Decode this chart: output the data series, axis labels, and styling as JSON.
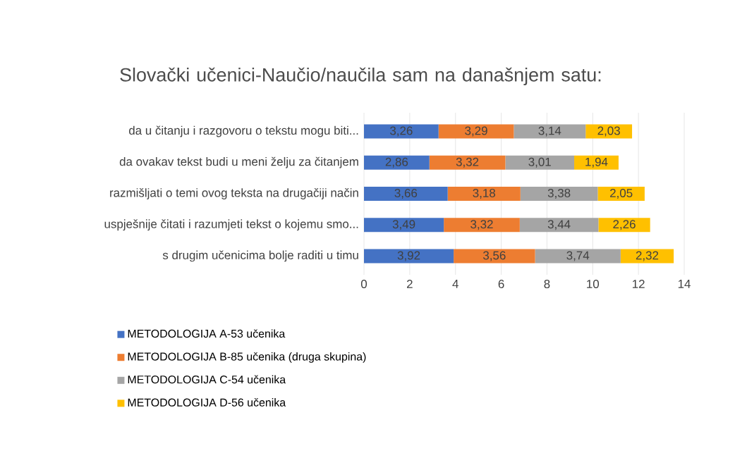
{
  "chart_data": {
    "type": "bar",
    "orientation": "horizontal",
    "stacked": true,
    "title": "Slovački učenici-Naučio/naučila sam na današnjem satu:",
    "categories": [
      "da u čitanju i razgovoru o tekstu mogu biti...",
      "da ovakav tekst budi u meni želju za čitanjem",
      "razmišljati o temi ovog teksta na drugačiji način",
      "uspješnije čitati i razumjeti tekst o kojemu smo...",
      "s drugim učenicima bolje raditi u timu"
    ],
    "series": [
      {
        "name": "METODOLOGIJA A-53 učenika",
        "color": "#4472c4",
        "values": [
          3.26,
          2.86,
          3.66,
          3.49,
          3.92
        ],
        "value_labels": [
          "3,26",
          "2,86",
          "3,66",
          "3,49",
          "3,92"
        ]
      },
      {
        "name": "METODOLOGIJA B-85 učenika (druga skupina)",
        "color": "#ed7d31",
        "values": [
          3.29,
          3.32,
          3.18,
          3.32,
          3.56
        ],
        "value_labels": [
          "3,29",
          "3,32",
          "3,18",
          "3,32",
          "3,56"
        ]
      },
      {
        "name": "METODOLOGIJA C-54 učenika",
        "color": "#a5a5a5",
        "values": [
          3.14,
          3.01,
          3.38,
          3.44,
          3.74
        ],
        "value_labels": [
          "3,14",
          "3,01",
          "3,38",
          "3,44",
          "3,74"
        ]
      },
      {
        "name": "METODOLOGIJA D-56 učenika",
        "color": "#ffc000",
        "values": [
          2.03,
          1.94,
          2.05,
          2.26,
          2.32
        ],
        "value_labels": [
          "2,03",
          "1,94",
          "2,05",
          "2,26",
          "2,32"
        ]
      }
    ],
    "xlim": [
      0,
      14
    ],
    "xticks": [
      0,
      2,
      4,
      6,
      8,
      10,
      12,
      14
    ],
    "grid": "x",
    "legend": "bottom"
  }
}
